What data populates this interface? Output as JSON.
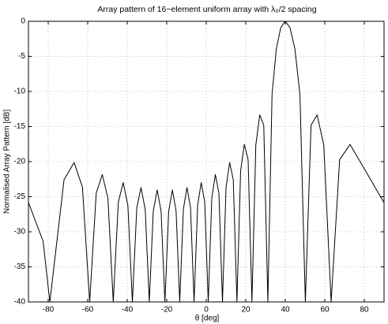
{
  "chart_data": {
    "type": "line",
    "title": "Array pattern of 16−element uniform array with λ₀/2 spacing",
    "xlabel": "θ [deg]",
    "ylabel": "Normalised Array Pattern [dB]",
    "color": "#000000",
    "grid": true,
    "xlim": [
      -90,
      90
    ],
    "xticks": [
      -80,
      -60,
      -40,
      -20,
      0,
      20,
      40,
      60,
      80
    ],
    "ylim": [
      -40,
      0
    ],
    "yticks": [
      -40,
      -35,
      -30,
      -25,
      -20,
      -15,
      -10,
      -5,
      0
    ],
    "x": [
      -90,
      -82.56,
      -79.17,
      -71.98,
      -66.88,
      -62.68,
      -59.0,
      -55.69,
      -52.63,
      -49.77,
      -47.07,
      -44.5,
      -42.04,
      -39.67,
      -37.39,
      -35.16,
      -33.01,
      -30.89,
      -28.83,
      -26.81,
      -24.82,
      -22.86,
      -20.93,
      -19.02,
      -17.14,
      -15.28,
      -13.42,
      -11.59,
      -9.77,
      -7.96,
      -6.16,
      -4.36,
      -2.56,
      -0.77,
      1.02,
      2.81,
      4.6,
      6.41,
      8.21,
      10.02,
      11.85,
      13.68,
      15.53,
      17.4,
      19.28,
      21.19,
      23.13,
      25.09,
      27.08,
      29.11,
      31.19,
      33.3,
      35.47,
      37.7,
      40.0,
      42.38,
      44.86,
      47.43,
      50.16,
      53.04,
      56.13,
      59.49,
      63.22,
      67.52,
      72.81,
      80.59,
      90
    ],
    "values": [
      -25.83,
      -31.37,
      -40,
      -22.59,
      -20.13,
      -23.63,
      -40,
      -24.49,
      -21.84,
      -25.19,
      -40,
      -25.76,
      -22.99,
      -26.21,
      -40,
      -26.57,
      -23.7,
      -26.83,
      -40,
      -27.0,
      -24.04,
      -27.08,
      -40,
      -27.08,
      -24.04,
      -27.0,
      -40,
      -26.83,
      -23.7,
      -26.57,
      -40,
      -26.21,
      -22.99,
      -25.76,
      -40,
      -25.19,
      -21.84,
      -24.49,
      -40,
      -23.63,
      -20.13,
      -22.59,
      -40,
      -21.31,
      -17.55,
      -19.71,
      -40,
      -17.64,
      -13.34,
      -14.8,
      -40,
      -10.42,
      -3.91,
      -0.91,
      0,
      -0.91,
      -3.91,
      -10.42,
      -40,
      -14.8,
      -13.34,
      -17.64,
      -40,
      -19.71,
      -17.55,
      -21.31,
      -25.86
    ]
  }
}
